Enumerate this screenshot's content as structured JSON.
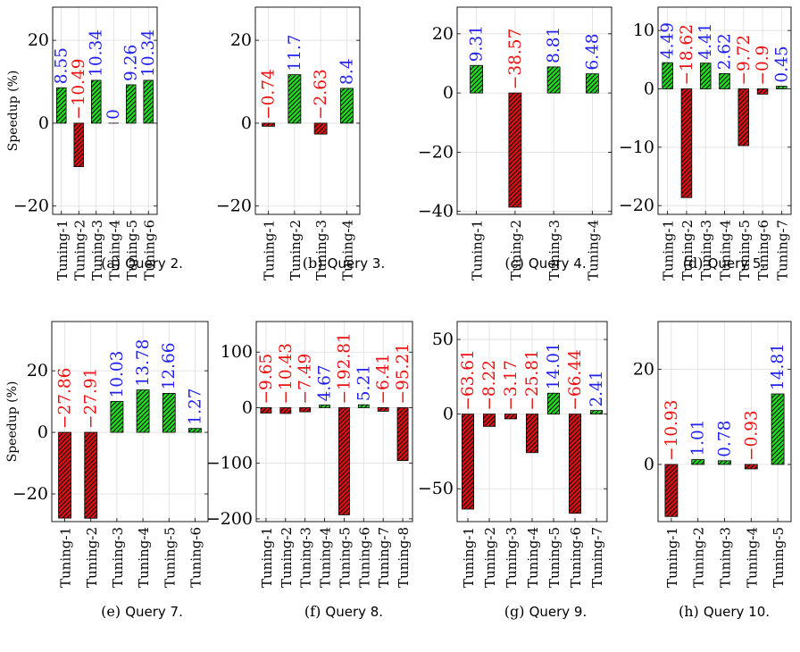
{
  "colors": {
    "positive_fill": "#22dd22",
    "negative_fill": "#dd1111",
    "positive_label": "#2222ee",
    "negative_label": "#ee1111",
    "grid": "#dddddd"
  },
  "chart_data": [
    {
      "type": "bar",
      "caption_tag": "(a)",
      "caption_text": "Query 2.",
      "ylabel": "Speedup (%)",
      "ylim": [
        -22,
        28
      ],
      "yticks": [
        -20,
        0,
        20
      ],
      "categories": [
        "Tuning-1",
        "Tuning-2",
        "Tuning-3",
        "Tuning-4",
        "Tuning-5",
        "Tuning-6"
      ],
      "values": [
        8.55,
        -10.49,
        10.34,
        0,
        9.26,
        10.34
      ],
      "value_labels": [
        "8.55",
        "−10.49",
        "10.34",
        "0",
        "9.26",
        "10.34"
      ]
    },
    {
      "type": "bar",
      "caption_tag": "(b)",
      "caption_text": "Query 3.",
      "ylabel": "",
      "ylim": [
        -22,
        28
      ],
      "yticks": [
        -20,
        0,
        20
      ],
      "categories": [
        "Tuning-1",
        "Tuning-2",
        "Tuning-3",
        "Tuning-4"
      ],
      "values": [
        -0.74,
        11.7,
        -2.63,
        8.4
      ],
      "value_labels": [
        "−0.74",
        "11.7",
        "−2.63",
        "8.4"
      ]
    },
    {
      "type": "bar",
      "caption_tag": "(c)",
      "caption_text": "Query 4.",
      "ylabel": "",
      "ylim": [
        -41,
        29
      ],
      "yticks": [
        -40,
        -20,
        0,
        20
      ],
      "categories": [
        "Tuning-1",
        "Tuning-2",
        "Tuning-3",
        "Tuning-4"
      ],
      "values": [
        9.31,
        -38.57,
        8.81,
        6.48
      ],
      "value_labels": [
        "9.31",
        "−38.57",
        "8.81",
        "6.48"
      ]
    },
    {
      "type": "bar",
      "caption_tag": "(d)",
      "caption_text": "Query 5.",
      "ylabel": "",
      "ylim": [
        -21.5,
        14
      ],
      "yticks": [
        -20,
        -10,
        0,
        10
      ],
      "categories": [
        "Tuning-1",
        "Tuning-2",
        "Tuning-3",
        "Tuning-4",
        "Tuning-5",
        "Tuning-6",
        "Tuning-7"
      ],
      "values": [
        4.49,
        -18.62,
        4.41,
        2.62,
        -9.72,
        -0.9,
        0.45
      ],
      "value_labels": [
        "4.49",
        "−18.62",
        "4.41",
        "2.62",
        "−9.72",
        "−0.9",
        "0.45"
      ]
    },
    {
      "type": "bar",
      "caption_tag": "(e)",
      "caption_text": "Query 7.",
      "ylabel": "Speedup (%)",
      "ylim": [
        -29,
        36
      ],
      "yticks": [
        -20,
        0,
        20
      ],
      "categories": [
        "Tuning-1",
        "Tuning-2",
        "Tuning-3",
        "Tuning-4",
        "Tuning-5",
        "Tuning-6"
      ],
      "values": [
        -27.86,
        -27.91,
        10.03,
        13.78,
        12.66,
        1.27
      ],
      "value_labels": [
        "−27.86",
        "−27.91",
        "10.03",
        "13.78",
        "12.66",
        "1.27"
      ]
    },
    {
      "type": "bar",
      "caption_tag": "(f)",
      "caption_text": "Query 8.",
      "ylabel": "",
      "ylim": [
        -205,
        155
      ],
      "yticks": [
        -200,
        -100,
        0,
        100
      ],
      "categories": [
        "Tuning-1",
        "Tuning-2",
        "Tuning-3",
        "Tuning-4",
        "Tuning-5",
        "Tuning-6",
        "Tuning-7",
        "Tuning-8"
      ],
      "values": [
        -9.65,
        -10.43,
        -7.49,
        4.67,
        -192.81,
        5.21,
        -6.41,
        -95.21
      ],
      "value_labels": [
        "−9.65",
        "−10.43",
        "−7.49",
        "4.67",
        "−192.81",
        "5.21",
        "−6.41",
        "−95.21"
      ]
    },
    {
      "type": "bar",
      "caption_tag": "(g)",
      "caption_text": "Query 9.",
      "ylabel": "",
      "ylim": [
        -72,
        62
      ],
      "yticks": [
        -50,
        0,
        50
      ],
      "categories": [
        "Tuning-1",
        "Tuning-2",
        "Tuning-3",
        "Tuning-4",
        "Tuning-5",
        "Tuning-6",
        "Tuning-7"
      ],
      "values": [
        -63.61,
        -8.22,
        -3.17,
        -25.81,
        14.01,
        -66.44,
        2.41
      ],
      "value_labels": [
        "−63.61",
        "−8.22",
        "−3.17",
        "−25.81",
        "14.01",
        "−66.44",
        "2.41"
      ]
    },
    {
      "type": "bar",
      "caption_tag": "(h)",
      "caption_text": "Query 10.",
      "ylabel": "",
      "ylim": [
        -12,
        30
      ],
      "yticks": [
        0,
        20
      ],
      "categories": [
        "Tuning-1",
        "Tuning-2",
        "Tuning-3",
        "Tuning-4",
        "Tuning-5"
      ],
      "values": [
        -10.93,
        1.01,
        0.78,
        -0.93,
        14.81
      ],
      "value_labels": [
        "−10.93",
        "1.01",
        "0.78",
        "−0.93",
        "14.81"
      ]
    }
  ]
}
